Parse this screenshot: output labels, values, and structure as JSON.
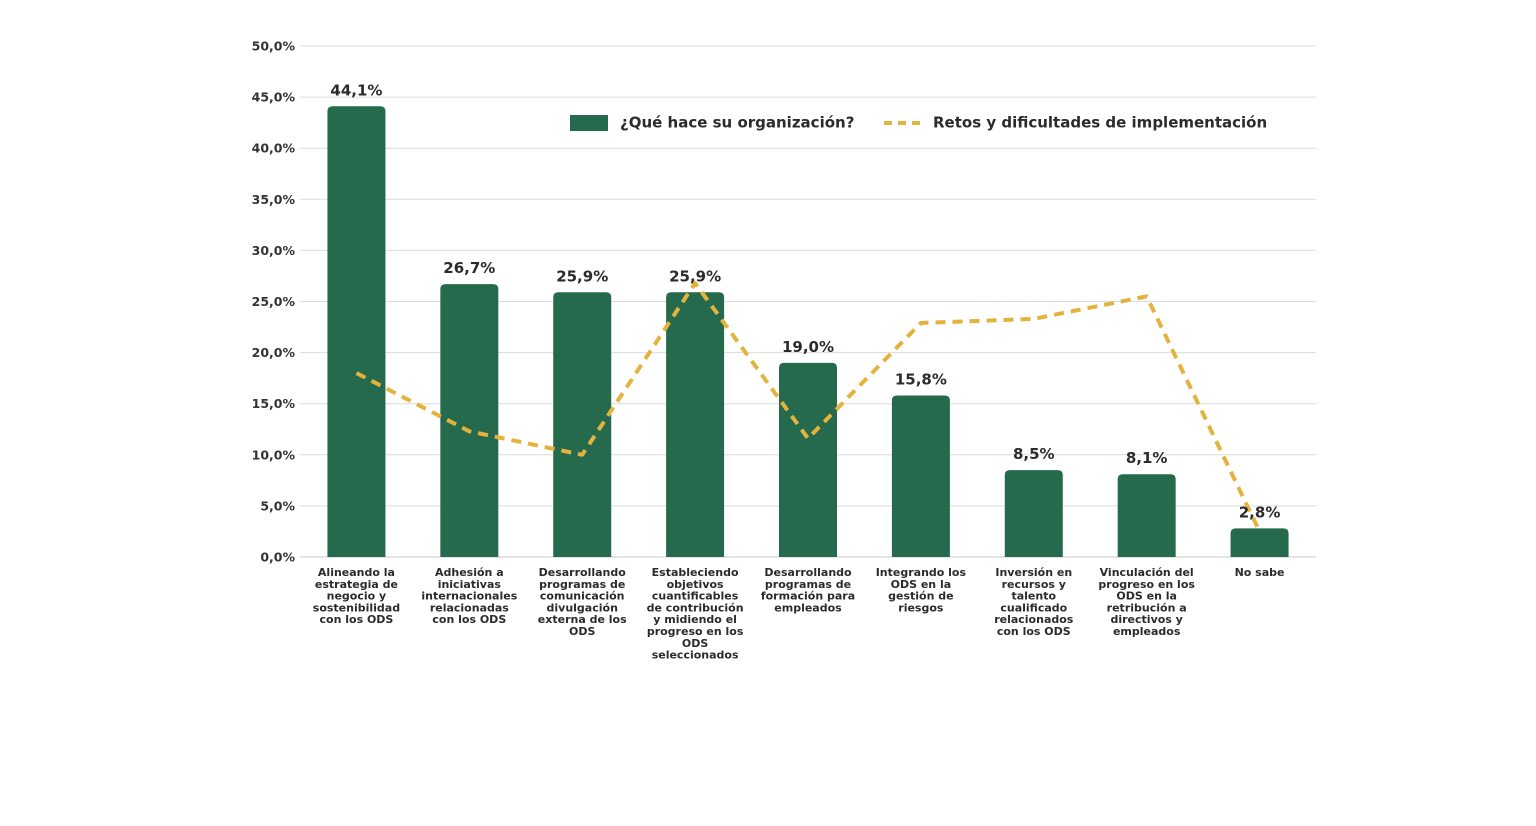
{
  "chart_data": {
    "type": "bar",
    "title": "",
    "xlabel": "",
    "ylabel": "",
    "ylim": [
      0,
      50
    ],
    "y_ticks": [
      "0,0%",
      "5,0%",
      "10,0%",
      "15,0%",
      "20,0%",
      "25,0%",
      "30,0%",
      "35,0%",
      "40,0%",
      "45,0%",
      "50,0%"
    ],
    "grid": true,
    "legend_position": "top-right",
    "categories": [
      [
        "Alineando la",
        "estrategia de",
        "negocio y",
        "sostenibilidad",
        "con los ODS"
      ],
      [
        "Adhesión a",
        "iniciativas",
        "internacionales",
        "relacionadas",
        "con los ODS"
      ],
      [
        "Desarrollando",
        "programas de",
        "comunicación",
        "divulgación",
        "externa de los",
        "ODS"
      ],
      [
        "Estableciendo",
        "objetivos",
        "cuantificables",
        "de contribución",
        "y midiendo el",
        "progreso en los",
        "ODS",
        "seleccionados"
      ],
      [
        "Desarrollando",
        "programas de",
        "formación para",
        "empleados"
      ],
      [
        "Integrando los",
        "ODS en la",
        "gestión de",
        "riesgos"
      ],
      [
        "Inversión en",
        "recursos y",
        "talento",
        "cualificado",
        "relacionados",
        "con los ODS"
      ],
      [
        "Vinculación del",
        "progreso en los",
        "ODS en la",
        "retribución a",
        "directivos y",
        "empleados"
      ],
      [
        "No sabe"
      ]
    ],
    "series": [
      {
        "name": "¿Qué hace su organización?",
        "kind": "bar",
        "color": "#256a4c",
        "values": [
          44.1,
          26.7,
          25.9,
          25.9,
          19.0,
          15.8,
          8.5,
          8.1,
          2.8
        ],
        "labels": [
          "44,1%",
          "26,7%",
          "25,9%",
          "25,9%",
          "19,0%",
          "15,8%",
          "8,5%",
          "8,1%",
          "2,8%"
        ]
      },
      {
        "name": "Retos y dificultades de implementación",
        "kind": "dashed-line",
        "color": "#e4b33d",
        "values": [
          18.0,
          12.3,
          10.0,
          26.8,
          11.6,
          22.9,
          23.3,
          25.5,
          2.5
        ]
      }
    ]
  }
}
